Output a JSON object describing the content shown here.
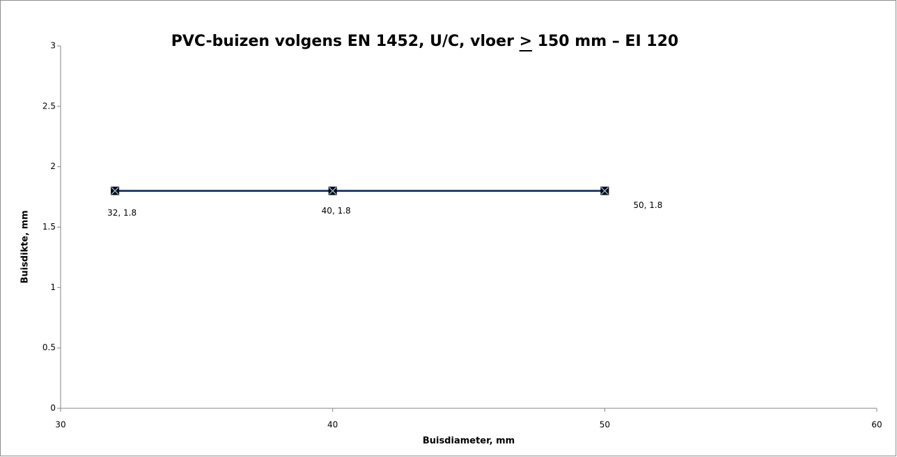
{
  "chart_data": {
    "type": "line",
    "title": "PVC-buizen volgens EN 1452, U/C, vloer > 150 mm – EI 120",
    "x_label": "Buisdiameter, mm",
    "y_label": "Buisdikte, mm",
    "x": [
      32,
      40,
      50
    ],
    "values": [
      1.8,
      1.8,
      1.8
    ],
    "value_labels": [
      "32, 1.8",
      "40, 1.8",
      "50, 1.8"
    ],
    "color": "#1f3f6e",
    "xlim": [
      30,
      60
    ],
    "xticks": [
      30,
      40,
      50,
      60
    ],
    "ylim": [
      0,
      3
    ],
    "yticks": [
      0,
      0.5,
      1,
      1.5,
      2,
      2.5,
      3
    ],
    "grid": false
  }
}
